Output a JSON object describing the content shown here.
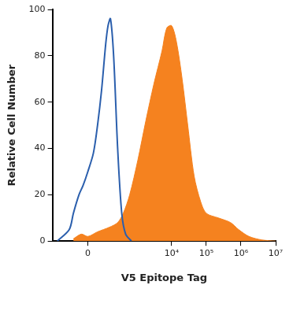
{
  "chart_data": {
    "type": "line",
    "xlabel": "V5 Epitope Tag",
    "ylabel": "Relative Cell Number",
    "xlim": [
      -400,
      10000000
    ],
    "xticks": [
      0,
      {
        "value": 10000,
        "label": "10⁴"
      },
      {
        "value": 100000,
        "label": "10⁵"
      },
      {
        "value": 1000000,
        "label": "10⁶"
      },
      {
        "value": 10000000,
        "label": "10⁷"
      }
    ],
    "ylim": [
      0,
      100
    ],
    "yticks": [
      0,
      20,
      40,
      60,
      80,
      100
    ],
    "grid": false,
    "series": [
      {
        "type": "line",
        "color": "#2b5fad",
        "x": [
          -288,
          -121,
          -86,
          -48,
          -25,
          0,
          29,
          53,
          80,
          114,
          137,
          164,
          206,
          273,
          361,
          470,
          690
        ],
        "values": [
          0,
          5,
          12,
          20,
          24,
          30,
          38,
          50,
          65,
          85,
          93,
          96,
          80,
          40,
          12,
          3,
          0
        ]
      },
      {
        "type": "area",
        "color": "#f5821f",
        "x": [
          -86,
          -34,
          0,
          53,
          153,
          273,
          400,
          616,
          1063,
          1810,
          3100,
          5270,
          7240,
          10000,
          13800,
          20100,
          29200,
          44700,
          68900,
          100000,
          222000,
          500000,
          850000,
          1700000,
          4000000,
          10000000
        ],
        "values": [
          1,
          3,
          2,
          4,
          6,
          8,
          12,
          20,
          35,
          52,
          68,
          82,
          92,
          93,
          86,
          70,
          50,
          28,
          17,
          12,
          10,
          8,
          5,
          2,
          0.5,
          0
        ]
      }
    ]
  }
}
